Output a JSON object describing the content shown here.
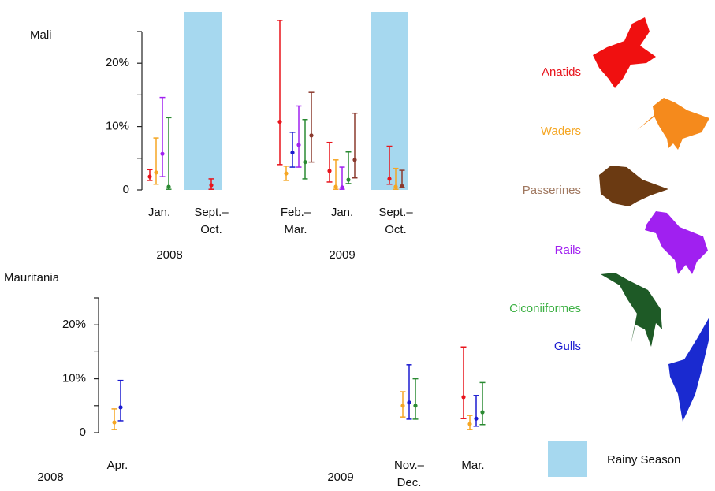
{
  "chart_data": [
    {
      "type": "errorbar",
      "title": "Mali",
      "categories": [
        "Jan.",
        "Sept.–\nOct.",
        "Feb.–\nMar.",
        "Jan.",
        "Sept.–\nOct."
      ],
      "groups": [
        {
          "label": "2008",
          "category": 0
        },
        {
          "label": "2009",
          "category": 3
        }
      ],
      "ylim": [
        0,
        25
      ],
      "yticks": [
        0,
        {
          "value": 10,
          "label": "10%"
        },
        {
          "value": 20,
          "label": "20%"
        }
      ],
      "yminorticks": [
        5,
        15,
        25
      ],
      "shade_label": "Rainy Season",
      "shade_color": "#a6d8ef",
      "series": [
        {
          "name": "Anatids",
          "color": "#e8141c",
          "values": [
            2.1,
            0.75,
            10.75,
            3,
            1.75
          ],
          "low": [
            1.5,
            0.1,
            4,
            1.25,
            0.9
          ],
          "high": [
            3.2,
            1.75,
            26.75,
            7.5,
            6.9
          ]
        },
        {
          "name": "Waders",
          "color": "#f5a623",
          "values": [
            2.75,
            null,
            2.6,
            0.5,
            0.5
          ],
          "low": [
            0.9,
            null,
            1.5,
            0.1,
            0.1
          ],
          "high": [
            8.2,
            null,
            3.75,
            4.75,
            3.4
          ]
        },
        {
          "name": "Gulls",
          "color": "#1a1ad0",
          "values": [
            null,
            null,
            5.9,
            null,
            null
          ],
          "low": [
            null,
            null,
            3.6,
            null,
            null
          ],
          "high": [
            null,
            null,
            9.1,
            null,
            null
          ]
        },
        {
          "name": "Rails",
          "color": "#a020f0",
          "values": [
            5.7,
            null,
            7.1,
            0.4,
            null
          ],
          "low": [
            2.1,
            null,
            3.6,
            0.1,
            null
          ],
          "high": [
            14.6,
            null,
            13.25,
            3.6,
            null
          ]
        },
        {
          "name": "Ciconiiformes",
          "color": "#2a8a32",
          "values": [
            0.5,
            null,
            4.4,
            1.6,
            null
          ],
          "low": [
            0.1,
            null,
            1.75,
            1,
            null
          ],
          "high": [
            11.4,
            null,
            11.1,
            6,
            null
          ]
        },
        {
          "name": "Passerines",
          "color": "#8b3a2e",
          "values": [
            null,
            null,
            8.6,
            4.75,
            0.6
          ],
          "low": [
            null,
            null,
            4.4,
            1.9,
            0.4
          ],
          "high": [
            null,
            null,
            15.4,
            12.1,
            3.1
          ]
        }
      ]
    },
    {
      "type": "errorbar",
      "title": "Mauritania",
      "categories": [
        "Apr.",
        "Nov.–\nDec.",
        "Mar."
      ],
      "groups": [
        {
          "label": "2008",
          "category": 0
        },
        {
          "label": "2009",
          "category": 1
        }
      ],
      "ylim": [
        0,
        25
      ],
      "yticks": [
        0,
        {
          "value": 10,
          "label": "10%"
        },
        {
          "value": 20,
          "label": "20%"
        }
      ],
      "yminorticks": [
        5,
        15,
        25
      ],
      "series": [
        {
          "name": "Anatids",
          "color": "#e8141c",
          "values": [
            null,
            null,
            6.6
          ],
          "low": [
            null,
            null,
            2.6
          ],
          "high": [
            null,
            null,
            15.9
          ]
        },
        {
          "name": "Waders",
          "color": "#f5a623",
          "values": [
            1.9,
            5,
            1.6
          ],
          "low": [
            0.6,
            2.9,
            0.6
          ],
          "high": [
            4.4,
            7.6,
            3.2
          ]
        },
        {
          "name": "Gulls",
          "color": "#1a1ad0",
          "values": [
            4.7,
            5.6,
            2.6
          ],
          "low": [
            2.2,
            2.5,
            1.2
          ],
          "high": [
            9.7,
            12.6,
            6.9
          ]
        },
        {
          "name": "Rails",
          "color": "#a020f0",
          "values": [
            null,
            null,
            null
          ],
          "low": [
            null,
            null,
            null
          ],
          "high": [
            null,
            null,
            null
          ]
        },
        {
          "name": "Ciconiiformes",
          "color": "#2a8a32",
          "values": [
            null,
            5,
            3.8
          ],
          "low": [
            null,
            2.5,
            1.5
          ],
          "high": [
            null,
            10,
            9.3
          ]
        },
        {
          "name": "Passerines",
          "color": "#8b3a2e",
          "values": [
            null,
            null,
            null
          ],
          "low": [
            null,
            null,
            null
          ],
          "high": [
            null,
            null,
            null
          ]
        }
      ]
    }
  ]
}
